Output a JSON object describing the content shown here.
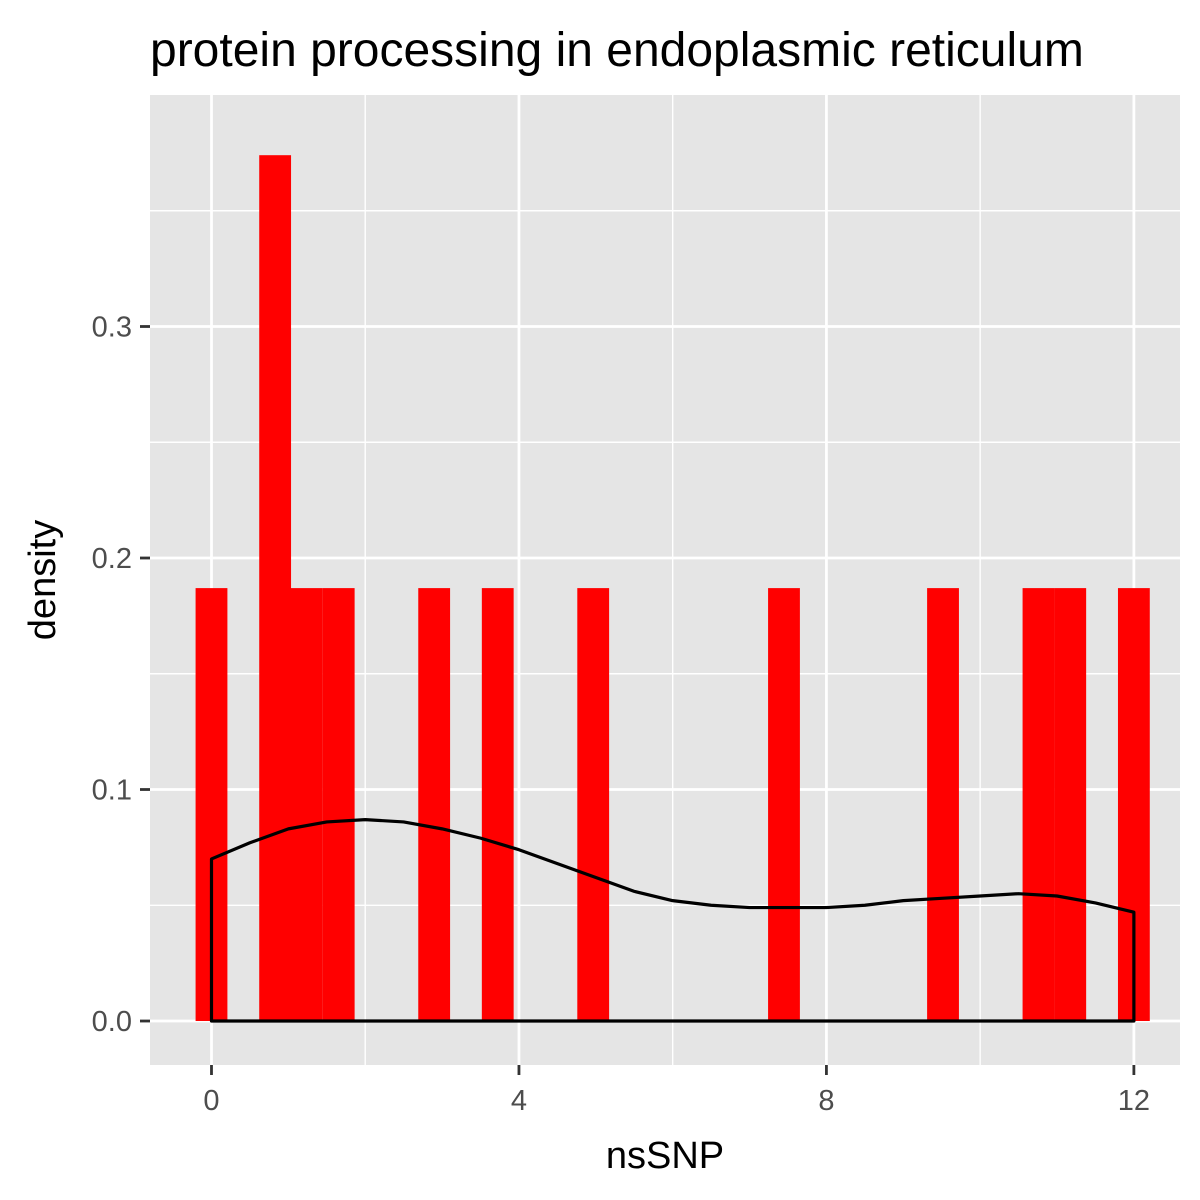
{
  "chart_data": {
    "type": "bar",
    "title": "protein processing in endoplasmic reticulum",
    "xlabel": "nsSNP",
    "ylabel": "density",
    "xlim": [
      -0.8,
      12.6
    ],
    "ylim": [
      -0.019,
      0.4
    ],
    "x_ticks": [
      0,
      4,
      8,
      12
    ],
    "x_tick_labels": [
      "0",
      "4",
      "8",
      "12"
    ],
    "y_ticks": [
      0.0,
      0.1,
      0.2,
      0.3
    ],
    "y_tick_labels": [
      "0.0",
      "0.1",
      "0.2",
      "0.3"
    ],
    "grid": true,
    "histogram": {
      "fill": "#ff0000",
      "bin_width": 0.414,
      "bins": [
        {
          "x": 0.0,
          "density": 0.187
        },
        {
          "x": 0.828,
          "density": 0.374
        },
        {
          "x": 1.241,
          "density": 0.187
        },
        {
          "x": 1.655,
          "density": 0.187
        },
        {
          "x": 2.897,
          "density": 0.187
        },
        {
          "x": 3.724,
          "density": 0.187
        },
        {
          "x": 4.966,
          "density": 0.187
        },
        {
          "x": 7.448,
          "density": 0.187
        },
        {
          "x": 9.517,
          "density": 0.187
        },
        {
          "x": 10.759,
          "density": 0.187
        },
        {
          "x": 11.172,
          "density": 0.187
        },
        {
          "x": 12.0,
          "density": 0.187
        }
      ]
    },
    "density_curve": {
      "stroke": "#000000",
      "x": [
        0,
        0.5,
        1,
        1.5,
        2,
        2.5,
        3,
        3.5,
        4,
        4.5,
        5,
        5.5,
        6,
        6.5,
        7,
        7.5,
        8,
        8.5,
        9,
        9.5,
        10,
        10.5,
        11,
        11.5,
        12
      ],
      "y": [
        0.07,
        0.077,
        0.083,
        0.086,
        0.087,
        0.086,
        0.083,
        0.079,
        0.074,
        0.068,
        0.062,
        0.056,
        0.052,
        0.05,
        0.049,
        0.049,
        0.049,
        0.05,
        0.052,
        0.053,
        0.054,
        0.055,
        0.054,
        0.051,
        0.047
      ]
    }
  }
}
